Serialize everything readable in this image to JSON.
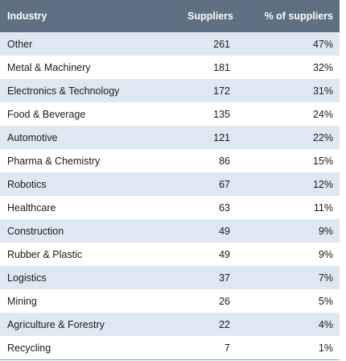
{
  "table": {
    "columns": [
      "Industry",
      "Suppliers",
      "% of suppliers"
    ],
    "rows": [
      {
        "industry": "Other",
        "suppliers": "261",
        "percent": "47%"
      },
      {
        "industry": "Metal & Machinery",
        "suppliers": "181",
        "percent": "32%"
      },
      {
        "industry": "Electronics & Technology",
        "suppliers": "172",
        "percent": "31%"
      },
      {
        "industry": "Food & Beverage",
        "suppliers": "135",
        "percent": "24%"
      },
      {
        "industry": "Automotive",
        "suppliers": "121",
        "percent": "22%"
      },
      {
        "industry": "Pharma & Chemistry",
        "suppliers": "86",
        "percent": "15%"
      },
      {
        "industry": "Robotics",
        "suppliers": "67",
        "percent": "12%"
      },
      {
        "industry": "Healthcare",
        "suppliers": "63",
        "percent": "11%"
      },
      {
        "industry": "Construction",
        "suppliers": "49",
        "percent": "9%"
      },
      {
        "industry": "Rubber & Plastic",
        "suppliers": "49",
        "percent": "9%"
      },
      {
        "industry": "Logistics",
        "suppliers": "37",
        "percent": "7%"
      },
      {
        "industry": "Mining",
        "suppliers": "26",
        "percent": "5%"
      },
      {
        "industry": "Agriculture & Forestry",
        "suppliers": "22",
        "percent": "4%"
      },
      {
        "industry": "Recycling",
        "suppliers": "7",
        "percent": "1%"
      }
    ]
  },
  "colors": {
    "header_bg": "#5f7082",
    "header_text": "#ffffff",
    "stripe_bg": "#dfe7f3",
    "text": "#1b1b1b"
  }
}
